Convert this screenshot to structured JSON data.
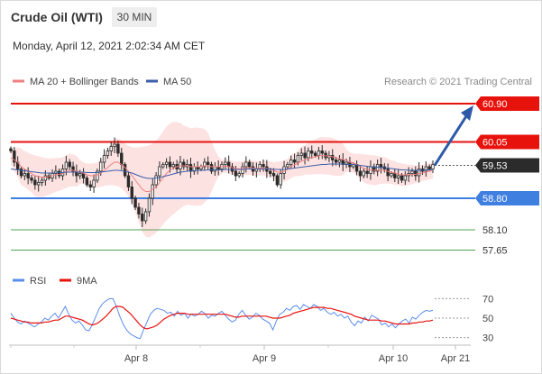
{
  "header": {
    "title": "Crude Oil (WTI)",
    "timeframe": "30 MIN",
    "datetime": "Monday, April 12, 2021 2:02:34 AM CET"
  },
  "credit": "Research © 2021 Trading Central",
  "colors": {
    "resistance": "#e8120c",
    "support": "#3f7fe0",
    "minor_support": "#52a352",
    "ma20": "#f08080",
    "ma50": "#3b5ea8",
    "band": "#fde2e2",
    "arrow": "#2d5aa8",
    "rsi": "#5b8def",
    "rsi_ma": "#e8120c"
  },
  "chart_data": [
    {
      "type": "candlestick",
      "title": "",
      "legend": [
        {
          "name": "MA 20 + Bollinger Bands",
          "color": "#f08080"
        },
        {
          "name": "MA 50",
          "color": "#3b5ea8"
        }
      ],
      "legend_position": "top-left",
      "x_ticks": [
        "Apr 8",
        "Apr 9",
        "Apr 10",
        "Apr 21"
      ],
      "ylim": [
        57.4,
        61.2
      ],
      "levels": [
        {
          "value": 60.9,
          "label": "60.90",
          "kind": "resistance"
        },
        {
          "value": 60.05,
          "label": "60.05",
          "kind": "resistance"
        },
        {
          "value": 59.53,
          "label": "59.53",
          "kind": "last"
        },
        {
          "value": 58.8,
          "label": "58.80",
          "kind": "support"
        },
        {
          "value": 58.1,
          "label": "58.10",
          "kind": "minor"
        },
        {
          "value": 57.65,
          "label": "57.65",
          "kind": "minor"
        }
      ],
      "forecast_arrow": {
        "from": 59.53,
        "to": 60.9
      },
      "close_series": [
        59.85,
        59.6,
        59.45,
        59.3,
        59.35,
        59.25,
        59.2,
        59.1,
        59.15,
        59.2,
        59.3,
        59.25,
        59.35,
        59.4,
        59.3,
        59.45,
        59.6,
        59.5,
        59.4,
        59.3,
        59.35,
        59.25,
        59.1,
        59.05,
        59.2,
        59.4,
        59.6,
        59.75,
        59.85,
        59.95,
        60.0,
        59.8,
        59.55,
        59.3,
        59.05,
        58.8,
        58.6,
        58.45,
        58.3,
        58.5,
        58.8,
        59.1,
        59.3,
        59.5,
        59.55,
        59.6,
        59.5,
        59.55,
        59.45,
        59.6,
        59.5,
        59.55,
        59.4,
        59.5,
        59.45,
        59.5,
        59.6,
        59.55,
        59.4,
        59.5,
        59.45,
        59.55,
        59.6,
        59.5,
        59.4,
        59.3,
        59.35,
        59.5,
        59.6,
        59.5,
        59.4,
        59.45,
        59.55,
        59.5,
        59.4,
        59.35,
        59.3,
        59.1,
        59.35,
        59.5,
        59.55,
        59.65,
        59.6,
        59.75,
        59.8,
        59.7,
        59.85,
        59.8,
        59.75,
        59.85,
        59.8,
        59.7,
        59.75,
        59.65,
        59.6,
        59.65,
        59.55,
        59.6,
        59.5,
        59.55,
        59.4,
        59.3,
        59.4,
        59.35,
        59.5,
        59.4,
        59.55,
        59.5,
        59.45,
        59.3,
        59.35,
        59.25,
        59.3,
        59.2,
        59.3,
        59.35,
        59.4,
        59.3,
        59.45,
        59.4,
        59.5,
        59.45,
        59.55
      ],
      "ma20_series": [
        59.7,
        59.65,
        59.6,
        59.5,
        59.45,
        59.4,
        59.35,
        59.3,
        59.28,
        59.27,
        59.27,
        59.28,
        59.3,
        59.32,
        59.33,
        59.35,
        59.4,
        59.42,
        59.42,
        59.4,
        59.38,
        59.36,
        59.32,
        59.3,
        59.3,
        59.32,
        59.36,
        59.42,
        59.48,
        59.55,
        59.6,
        59.6,
        59.55,
        59.48,
        59.4,
        59.3,
        59.2,
        59.1,
        59.0,
        58.95,
        58.95,
        59.0,
        59.05,
        59.15,
        59.25,
        59.35,
        59.42,
        59.47,
        59.5,
        59.52,
        59.52,
        59.52,
        59.5,
        59.5,
        59.5,
        59.5,
        59.52,
        59.52,
        59.5,
        59.5,
        59.5,
        59.5,
        59.52,
        59.5,
        59.48,
        59.46,
        59.45,
        59.46,
        59.48,
        59.48,
        59.47,
        59.46,
        59.47,
        59.47,
        59.46,
        59.44,
        59.42,
        59.38,
        59.38,
        59.4,
        59.44,
        59.5,
        59.54,
        59.58,
        59.62,
        59.65,
        59.68,
        59.7,
        59.72,
        59.74,
        59.75,
        59.74,
        59.74,
        59.72,
        59.7,
        59.68,
        59.66,
        59.64,
        59.6,
        59.58,
        59.55,
        59.5,
        59.47,
        59.44,
        59.43,
        59.42,
        59.42,
        59.42,
        59.42,
        59.4,
        59.38,
        59.36,
        59.34,
        59.32,
        59.32,
        59.32,
        59.33,
        59.33,
        59.35,
        59.36,
        59.38,
        59.4,
        59.42
      ],
      "ma50_series": [
        59.45,
        59.44,
        59.43,
        59.42,
        59.41,
        59.4,
        59.39,
        59.38,
        59.37,
        59.36,
        59.36,
        59.36,
        59.36,
        59.36,
        59.37,
        59.37,
        59.38,
        59.38,
        59.38,
        59.38,
        59.38,
        59.38,
        59.37,
        59.37,
        59.37,
        59.37,
        59.38,
        59.39,
        59.4,
        59.41,
        59.42,
        59.42,
        59.41,
        59.4,
        59.38,
        59.36,
        59.33,
        59.3,
        59.27,
        59.25,
        59.24,
        59.24,
        59.25,
        59.26,
        59.28,
        59.3,
        59.32,
        59.34,
        59.36,
        59.38,
        59.39,
        59.4,
        59.41,
        59.41,
        59.42,
        59.42,
        59.42,
        59.43,
        59.43,
        59.43,
        59.43,
        59.43,
        59.44,
        59.44,
        59.44,
        59.44,
        59.44,
        59.44,
        59.45,
        59.45,
        59.45,
        59.45,
        59.45,
        59.45,
        59.45,
        59.45,
        59.44,
        59.44,
        59.44,
        59.44,
        59.45,
        59.46,
        59.47,
        59.48,
        59.49,
        59.5,
        59.51,
        59.52,
        59.53,
        59.54,
        59.55,
        59.55,
        59.56,
        59.56,
        59.56,
        59.56,
        59.56,
        59.56,
        59.55,
        59.55,
        59.54,
        59.53,
        59.52,
        59.51,
        59.5,
        59.49,
        59.49,
        59.48,
        59.48,
        59.47,
        59.46,
        59.45,
        59.44,
        59.43,
        59.43,
        59.42,
        59.42,
        59.42,
        59.42,
        59.42,
        59.43,
        59.43,
        59.44
      ]
    },
    {
      "type": "line",
      "title": "",
      "legend": [
        {
          "name": "RSI",
          "color": "#5b8def"
        },
        {
          "name": "9MA",
          "color": "#e8120c"
        }
      ],
      "legend_position": "top-left",
      "ylim": [
        25,
        75
      ],
      "y_ticks": [
        "70",
        "50",
        "30"
      ],
      "series": [
        {
          "name": "RSI",
          "values": [
            55,
            50,
            46,
            44,
            47,
            45,
            43,
            41,
            44,
            46,
            50,
            48,
            52,
            55,
            50,
            56,
            62,
            54,
            48,
            45,
            47,
            43,
            38,
            37,
            44,
            52,
            60,
            65,
            68,
            70,
            70,
            62,
            52,
            44,
            38,
            34,
            32,
            30,
            29,
            38,
            46,
            54,
            58,
            60,
            59,
            58,
            55,
            56,
            52,
            57,
            53,
            55,
            50,
            54,
            52,
            54,
            57,
            55,
            50,
            53,
            52,
            55,
            57,
            53,
            49,
            46,
            48,
            54,
            58,
            53,
            49,
            51,
            55,
            53,
            49,
            47,
            45,
            38,
            47,
            54,
            56,
            60,
            58,
            62,
            63,
            59,
            64,
            62,
            60,
            64,
            62,
            58,
            60,
            56,
            54,
            56,
            52,
            54,
            50,
            52,
            46,
            42,
            47,
            45,
            51,
            47,
            53,
            51,
            49,
            43,
            45,
            41,
            44,
            40,
            44,
            47,
            49,
            45,
            51,
            49,
            53,
            56,
            58,
            57,
            58
          ]
        },
        {
          "name": "9MA",
          "values": [
            50,
            49,
            48,
            47,
            46,
            46,
            45,
            45,
            45,
            45,
            46,
            46,
            47,
            48,
            48,
            50,
            52,
            52,
            51,
            50,
            49,
            48,
            46,
            44,
            43,
            44,
            46,
            49,
            52,
            56,
            60,
            62,
            62,
            61,
            58,
            55,
            51,
            47,
            43,
            40,
            39,
            40,
            41,
            43,
            46,
            49,
            51,
            53,
            54,
            55,
            55,
            55,
            54,
            54,
            54,
            54,
            54,
            54,
            54,
            54,
            54,
            54,
            54,
            54,
            53,
            52,
            51,
            51,
            52,
            52,
            52,
            52,
            52,
            52,
            52,
            52,
            51,
            50,
            50,
            50,
            51,
            52,
            53,
            55,
            56,
            57,
            58,
            59,
            60,
            61,
            61,
            61,
            61,
            60,
            60,
            59,
            58,
            57,
            56,
            55,
            54,
            52,
            51,
            50,
            49,
            48,
            48,
            48,
            48,
            47,
            47,
            46,
            45,
            44,
            44,
            44,
            44,
            44,
            45,
            45,
            46,
            46,
            47,
            47,
            48
          ]
        }
      ]
    }
  ]
}
